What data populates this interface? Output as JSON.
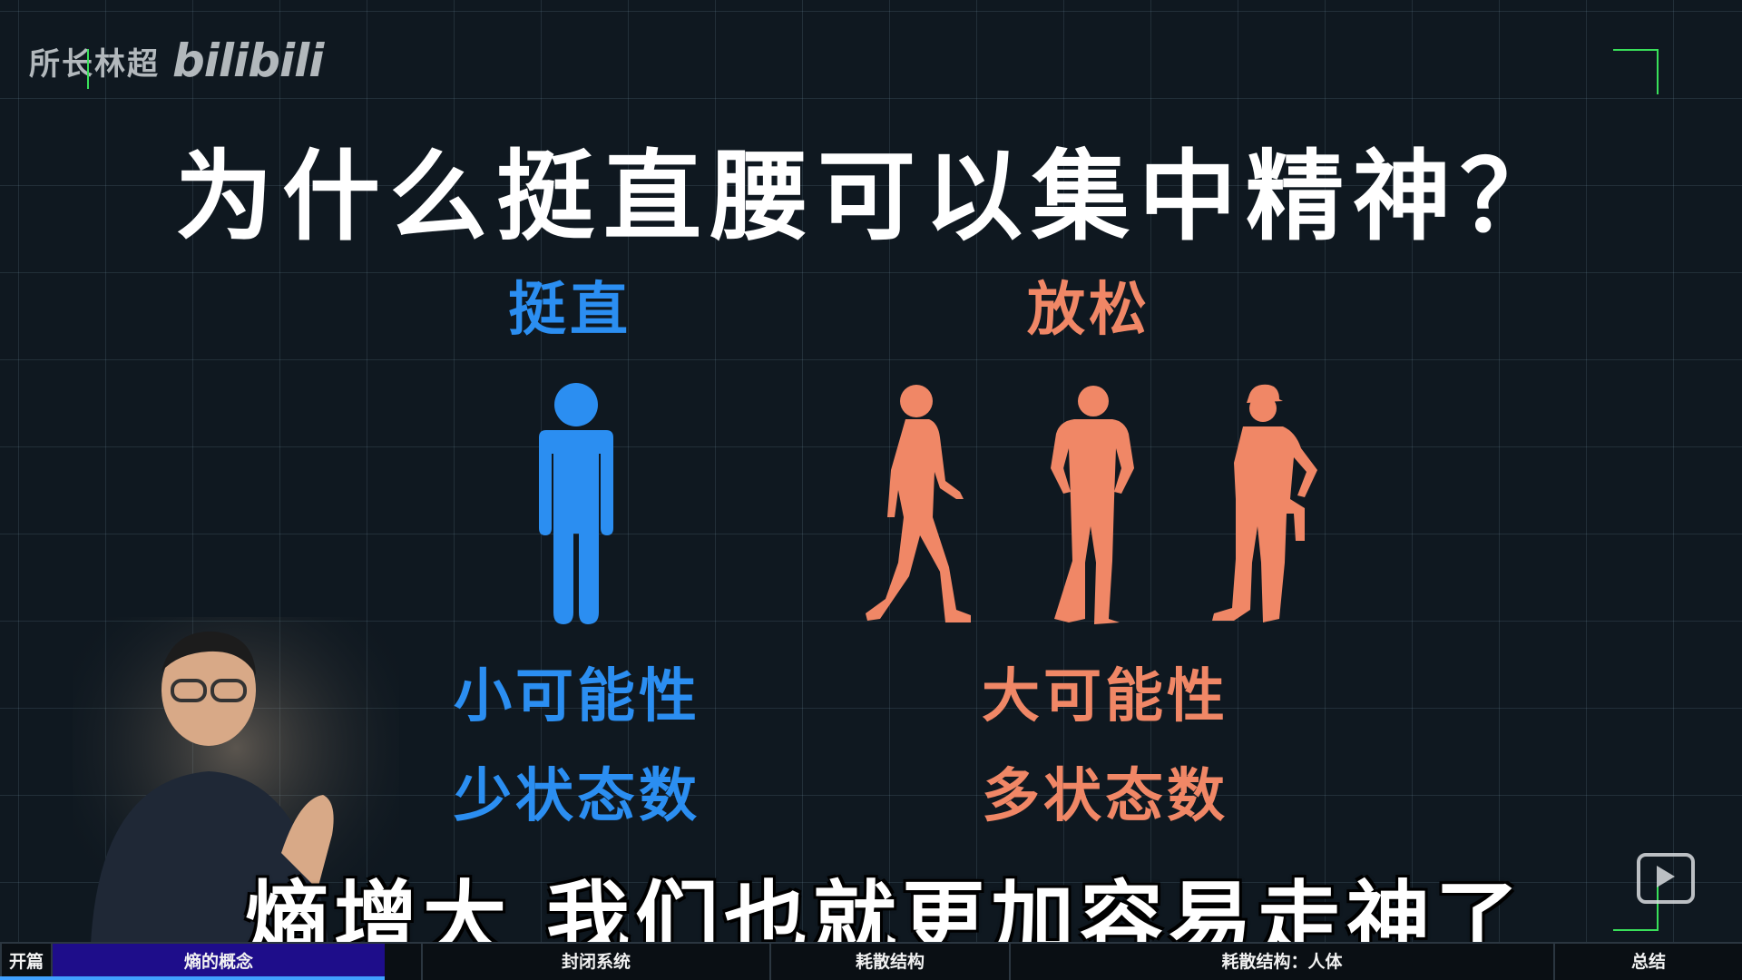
{
  "watermark": {
    "channel": "所长林超",
    "platform": "bilibili"
  },
  "title": "为什么挺直腰可以集中精神？",
  "left": {
    "heading": "挺直",
    "line1": "小可能性",
    "line2": "少状态数",
    "color": "#2b8ef1"
  },
  "right": {
    "heading": "放松",
    "line1": "大可能性",
    "line2": "多状态数",
    "color": "#f08766"
  },
  "subtitle": "熵增大 我们也就更加容易走神了",
  "icons": {
    "person_upright": "standing-person-icon",
    "walking": "walking-person-icon",
    "standing": "standing-hands-on-hips-icon",
    "worker": "worker-person-icon",
    "player": "play-icon"
  },
  "chapters": [
    {
      "label": "开篇"
    },
    {
      "label": "熵的概念",
      "active": true
    },
    {
      "label": "封闭系统"
    },
    {
      "label": "耗散结构"
    },
    {
      "label": "耗散结构：人体"
    },
    {
      "label": "总结"
    }
  ],
  "accent_green": "#39e05a"
}
